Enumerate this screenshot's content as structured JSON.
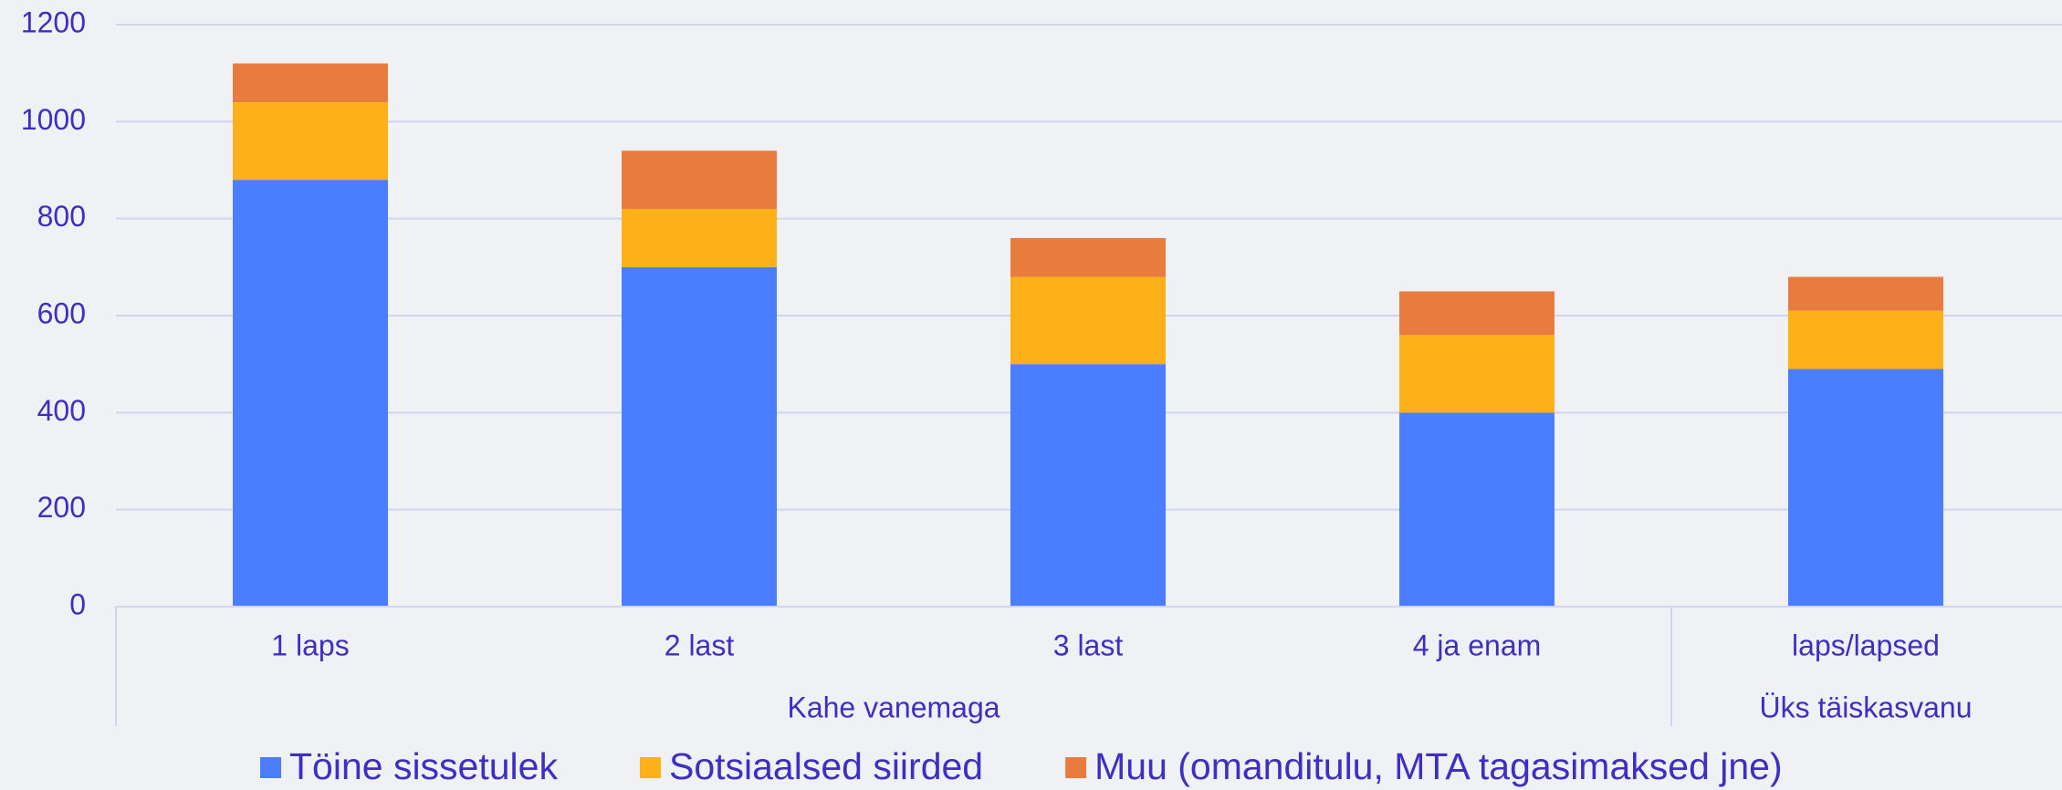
{
  "chart_data": {
    "type": "stacked_bar",
    "groups": [
      {
        "label": "Kahe vanemaga",
        "categories": [
          "1 laps",
          "2 last",
          "3 last",
          "4 ja enam"
        ]
      },
      {
        "label": "Üks täiskasvanu",
        "categories": [
          "laps/lapsed"
        ]
      }
    ],
    "series": [
      {
        "name": "Töine sissetulek",
        "color": "#4a7eff",
        "values": [
          880,
          700,
          500,
          400,
          490
        ]
      },
      {
        "name": "Sotsiaalsed siirded",
        "color": "#fdb118",
        "values": [
          160,
          120,
          180,
          160,
          120
        ]
      },
      {
        "name": "Muu (omanditulu, MTA tagasimaksed jne)",
        "color": "#e87c3e",
        "values": [
          80,
          120,
          80,
          90,
          70
        ]
      }
    ],
    "ylim": [
      0,
      1200
    ],
    "yticks": [
      0,
      200,
      400,
      600,
      800,
      1000,
      1200
    ],
    "grid": true,
    "legend": "bottom"
  }
}
